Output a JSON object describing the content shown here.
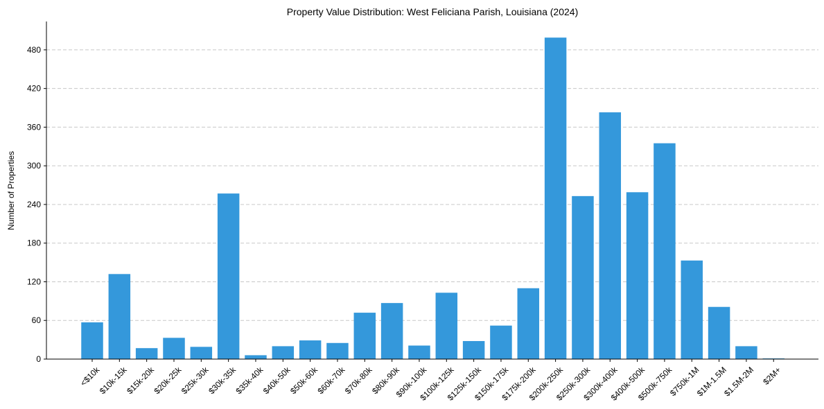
{
  "chart_data": {
    "type": "bar",
    "title": "Property Value Distribution: West Feliciana Parish, Louisiana (2024)",
    "xlabel": "",
    "ylabel": "Number of Properties",
    "ylim": [
      0,
      524
    ],
    "yticks": [
      0,
      60,
      120,
      180,
      240,
      300,
      360,
      420,
      480
    ],
    "grid": "y",
    "bar_color": "#3498db",
    "categories": [
      "<$10k",
      "$10k-15k",
      "$15k-20k",
      "$20k-25k",
      "$25k-30k",
      "$30k-35k",
      "$35k-40k",
      "$40k-50k",
      "$50k-60k",
      "$60k-70k",
      "$70k-80k",
      "$80k-90k",
      "$90k-100k",
      "$100k-125k",
      "$125k-150k",
      "$150k-175k",
      "$175k-200k",
      "$200k-250k",
      "$250k-300k",
      "$300k-400k",
      "$400k-500k",
      "$500k-750k",
      "$750k-1M",
      "$1M-1.5M",
      "$1.5M-2M",
      "$2M+"
    ],
    "values": [
      57,
      132,
      17,
      33,
      19,
      257,
      6,
      20,
      29,
      25,
      72,
      87,
      21,
      103,
      28,
      52,
      110,
      499,
      253,
      383,
      259,
      335,
      153,
      81,
      20,
      1
    ]
  }
}
